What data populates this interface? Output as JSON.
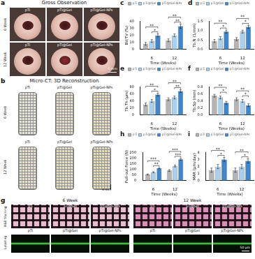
{
  "panels": {
    "a": {
      "label": "a",
      "title": "Gross Observation",
      "rows": [
        "6 Week",
        "12 Week"
      ],
      "columns": [
        "pTi",
        "pTi@Gel",
        "pTi@Gel-NPs"
      ],
      "scale_bar": "5 mm"
    },
    "b": {
      "label": "b",
      "title": "Micro-CT: 3D Reconstruction",
      "rows": [
        "6 Week",
        "12 Week"
      ],
      "columns": [
        "pTi",
        "pTi@Gel",
        "pTi@Gel-NPs"
      ],
      "scale_bar": "4 mm"
    },
    "g": {
      "label": "g",
      "rows": [
        "H&E Staining",
        "Labeling"
      ],
      "groups": [
        "6 Week",
        "12 Week"
      ],
      "columns": [
        "pTi",
        "pTi@Gel",
        "pTi@Gel-NPs"
      ],
      "scale_bar": "50 μm"
    }
  },
  "chart_data": [
    {
      "label": "c",
      "type": "bar",
      "y_label": "BV/TV (%)",
      "x_label": "Time (Weeks)",
      "categories": [
        "6",
        "12"
      ],
      "series": [
        {
          "name": "pTi",
          "color": "#b5b5b5",
          "values": [
            8,
            13
          ],
          "errors": [
            2,
            2
          ]
        },
        {
          "name": "pTi@Gel",
          "color": "#a9d0ee",
          "values": [
            12,
            20
          ],
          "errors": [
            2,
            2
          ]
        },
        {
          "name": "pTi@Gel-NPs",
          "color": "#3f86cc",
          "values": [
            20,
            33
          ],
          "errors": [
            2,
            3
          ]
        }
      ],
      "ylim": [
        0,
        40
      ],
      "yticks": [
        0,
        10,
        20,
        30,
        40
      ],
      "grid": false,
      "legend": "top",
      "annotations": [
        {
          "category": 0,
          "from": 1,
          "to": 2,
          "text": "*"
        },
        {
          "category": 0,
          "from": 0,
          "to": 2,
          "text": "**"
        },
        {
          "category": 1,
          "from": 1,
          "to": 2,
          "text": "**"
        },
        {
          "category": 1,
          "from": 0,
          "to": 2,
          "text": "**"
        }
      ]
    },
    {
      "label": "d",
      "type": "bar",
      "y_label": "Tb.N (1/mm)",
      "x_label": "Time (Weeks)",
      "categories": [
        "6",
        "12"
      ],
      "series": [
        {
          "name": "pTi",
          "color": "#b5b5b5",
          "values": [
            0.45,
            0.55
          ],
          "errors": [
            0.08,
            0.08
          ]
        },
        {
          "name": "pTi@Gel",
          "color": "#a9d0ee",
          "values": [
            0.6,
            0.95
          ],
          "errors": [
            0.08,
            0.08
          ]
        },
        {
          "name": "pTi@Gel-NPs",
          "color": "#3f86cc",
          "values": [
            0.95,
            1.2
          ],
          "errors": [
            0.08,
            0.08
          ]
        }
      ],
      "ylim": [
        0,
        1.5
      ],
      "yticks": [
        {
          "value": 0,
          "label": "0.0"
        },
        0.5,
        {
          "value": 1,
          "label": "1.0"
        },
        1.5
      ],
      "grid": false,
      "legend": "top",
      "annotations": [
        {
          "category": 0,
          "from": 1,
          "to": 2,
          "text": "*"
        },
        {
          "category": 0,
          "from": 0,
          "to": 2,
          "text": "**"
        },
        {
          "category": 1,
          "from": 1,
          "to": 2,
          "text": "*"
        },
        {
          "category": 1,
          "from": 0,
          "to": 2,
          "text": "**"
        }
      ]
    },
    {
      "label": "e",
      "type": "bar",
      "y_label": "Tb.Th (μm)",
      "x_label": "Time (Weeks)",
      "categories": [
        "6",
        "12"
      ],
      "series": [
        {
          "name": "pTi",
          "color": "#b5b5b5",
          "values": [
            30,
            45
          ],
          "errors": [
            4,
            4
          ]
        },
        {
          "name": "pTi@Gel",
          "color": "#a9d0ee",
          "values": [
            40,
            50
          ],
          "errors": [
            4,
            4
          ]
        },
        {
          "name": "pTi@Gel-NPs",
          "color": "#3f86cc",
          "values": [
            58,
            68
          ],
          "errors": [
            4,
            4
          ]
        }
      ],
      "ylim": [
        0,
        80
      ],
      "yticks": [
        0,
        20,
        40,
        60,
        80
      ],
      "grid": false,
      "legend": "top",
      "annotations": [
        {
          "category": 0,
          "from": 1,
          "to": 2,
          "text": "*"
        },
        {
          "category": 0,
          "from": 0,
          "to": 2,
          "text": "**"
        },
        {
          "category": 1,
          "from": 1,
          "to": 2,
          "text": "**"
        },
        {
          "category": 1,
          "from": 0,
          "to": 2,
          "text": "**"
        }
      ]
    },
    {
      "label": "f",
      "type": "bar",
      "y_label": "Tb.Sp (mm)",
      "x_label": "Time (Weeks)",
      "categories": [
        "6",
        "12"
      ],
      "series": [
        {
          "name": "pTi",
          "color": "#b5b5b5",
          "values": [
            0.55,
            0.45
          ],
          "errors": [
            0.04,
            0.04
          ]
        },
        {
          "name": "pTi@Gel",
          "color": "#a9d0ee",
          "values": [
            0.5,
            0.4
          ],
          "errors": [
            0.04,
            0.04
          ]
        },
        {
          "name": "pTi@Gel-NPs",
          "color": "#3f86cc",
          "values": [
            0.35,
            0.28
          ],
          "errors": [
            0.04,
            0.04
          ]
        }
      ],
      "ylim": [
        0,
        0.8
      ],
      "yticks": [
        {
          "value": 0,
          "label": "0.0"
        },
        0.2,
        0.4,
        0.6,
        0.8
      ],
      "grid": false,
      "legend": "top",
      "annotations": [
        {
          "category": 0,
          "from": 1,
          "to": 2,
          "text": "*"
        },
        {
          "category": 0,
          "from": 0,
          "to": 2,
          "text": "**"
        },
        {
          "category": 1,
          "from": 1,
          "to": 2,
          "text": "*"
        },
        {
          "category": 1,
          "from": 0,
          "to": 2,
          "text": "**"
        }
      ]
    },
    {
      "label": "h",
      "type": "bar",
      "y_label": "Pull-out Force (N)",
      "x_label": "Time (Weeks)",
      "categories": [
        "6",
        "12"
      ],
      "series": [
        {
          "name": "pTi",
          "color": "#b5b5b5",
          "values": [
            55,
            90
          ],
          "errors": [
            5,
            8
          ]
        },
        {
          "name": "pTi@Gel",
          "color": "#a9d0ee",
          "values": [
            75,
            130
          ],
          "errors": [
            5,
            8
          ]
        },
        {
          "name": "pTi@Gel-NPs",
          "color": "#3f86cc",
          "values": [
            110,
            190
          ],
          "errors": [
            5,
            8
          ]
        }
      ],
      "ylim": [
        0,
        250
      ],
      "yticks": [
        0,
        50,
        100,
        150,
        200,
        250
      ],
      "grid": false,
      "legend": "top",
      "annotations": [
        {
          "category": 0,
          "from": 1,
          "to": 2,
          "text": "**"
        },
        {
          "category": 0,
          "from": 0,
          "to": 2,
          "text": "***"
        },
        {
          "category": 1,
          "from": 1,
          "to": 2,
          "text": "***"
        },
        {
          "category": 1,
          "from": 0,
          "to": 2,
          "text": "***"
        }
      ]
    },
    {
      "label": "i",
      "type": "bar",
      "y_label": "MAR (μm/day)",
      "x_label": "Time (Weeks)",
      "categories": [
        "6",
        "12"
      ],
      "series": [
        {
          "name": "pTi",
          "color": "#b5b5b5",
          "values": [
            1.5,
            1.5
          ],
          "errors": [
            0.3,
            0.3
          ]
        },
        {
          "name": "pTi@Gel",
          "color": "#a9d0ee",
          "values": [
            2.0,
            2.0
          ],
          "errors": [
            0.3,
            0.3
          ]
        },
        {
          "name": "pTi@Gel-NPs",
          "color": "#3f86cc",
          "values": [
            3.0,
            2.8
          ],
          "errors": [
            0.3,
            0.3
          ]
        }
      ],
      "ylim": [
        0,
        4
      ],
      "yticks": [
        0,
        1,
        2,
        3,
        4
      ],
      "grid": false,
      "legend": "top",
      "annotations": [
        {
          "category": 0,
          "from": 1,
          "to": 2,
          "text": "*"
        },
        {
          "category": 0,
          "from": 0,
          "to": 2,
          "text": "**"
        },
        {
          "category": 1,
          "from": 1,
          "to": 2,
          "text": "*"
        },
        {
          "category": 1,
          "from": 0,
          "to": 2,
          "text": "**"
        }
      ]
    }
  ]
}
